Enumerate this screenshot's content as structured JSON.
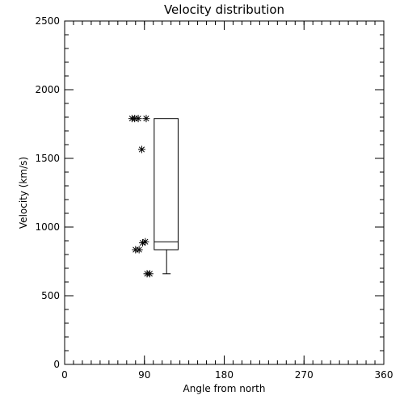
{
  "chart_data": {
    "type": "scatter",
    "title": "Velocity distribution",
    "xlabel": "Angle from north",
    "ylabel": "Velocity (km/s)",
    "xlim": [
      0,
      360
    ],
    "ylim": [
      0,
      2500
    ],
    "x_ticks": [
      0,
      90,
      180,
      270,
      360
    ],
    "y_ticks": [
      0,
      500,
      1000,
      1500,
      2000,
      2500
    ],
    "x_ticklabels": [
      "0",
      "90",
      "180",
      "270",
      "360"
    ],
    "y_ticklabels": [
      "0",
      "500",
      "1000",
      "1500",
      "2000",
      "2500"
    ],
    "x_minor_step": 10,
    "y_minor_step": 100,
    "grid": false,
    "points": [
      {
        "x": 76,
        "y": 1790
      },
      {
        "x": 79,
        "y": 1790
      },
      {
        "x": 83,
        "y": 1790
      },
      {
        "x": 92,
        "y": 1790
      },
      {
        "x": 87,
        "y": 1565
      },
      {
        "x": 91,
        "y": 893
      },
      {
        "x": 88,
        "y": 885
      },
      {
        "x": 80,
        "y": 835
      },
      {
        "x": 84,
        "y": 835
      },
      {
        "x": 93,
        "y": 660
      },
      {
        "x": 96,
        "y": 660
      }
    ],
    "boxplot": {
      "x_left": 101,
      "x_right": 128,
      "whisker_x": 115,
      "min": 660,
      "q1": 835,
      "median": 893,
      "q3": 1790,
      "max": 1790
    }
  }
}
